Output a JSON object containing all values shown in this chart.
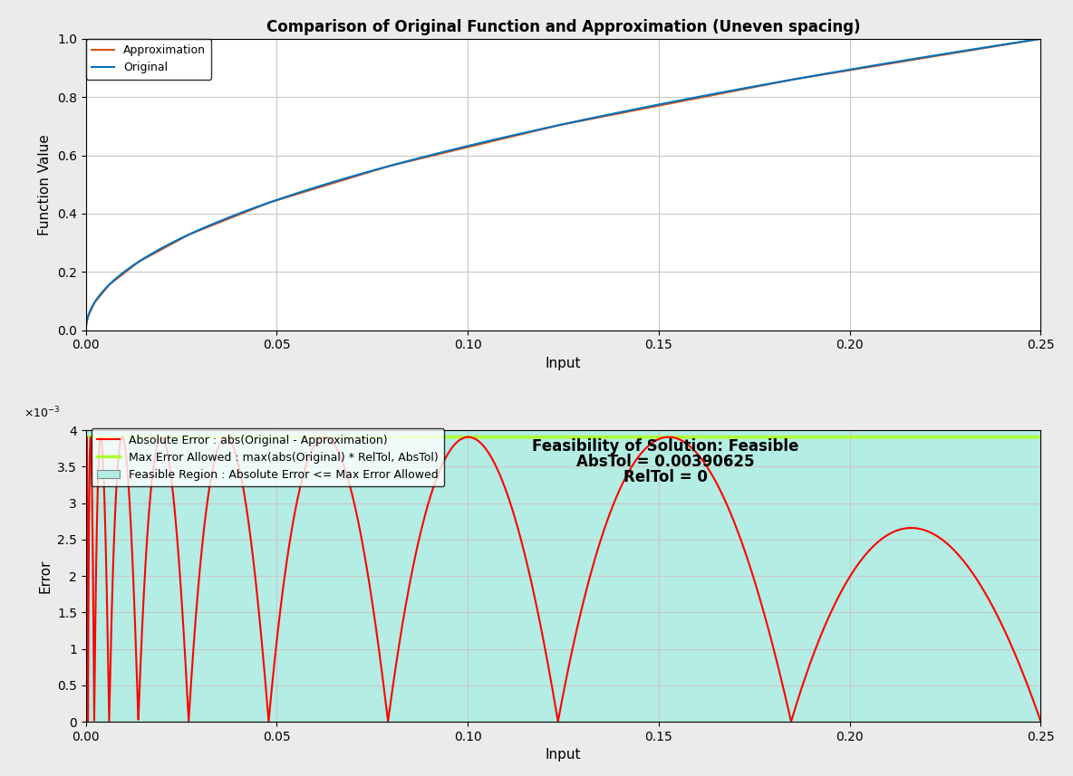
{
  "title1": "Comparison of Original Function and Approximation (Uneven spacing)",
  "title2_line1": "Feasibility of Solution: Feasible",
  "title2_line2": "AbsTol = 0.00390625",
  "title2_line3": "RelTol = 0",
  "xlabel": "Input",
  "ylabel1": "Function Value",
  "ylabel2": "Error",
  "xlim": [
    0,
    0.25
  ],
  "ylim1": [
    0,
    1
  ],
  "ylim2": [
    0,
    0.004
  ],
  "AbsTol": 0.00390625,
  "RelTol": 0,
  "original_color": "#0072BD",
  "approx_color": "#D95319",
  "error_color": "#FF0000",
  "max_error_color": "#ADFF2F",
  "feasible_color": "#B3EDE3",
  "legend1_labels": [
    "Approximation",
    "Original"
  ],
  "legend2_labels": [
    "Absolute Error : abs(Original - Approximation)",
    "Max Error Allowed : max(abs(Original) * RelTol, AbsTol)",
    "Feasible Region : Absolute Error <= Max Error Allowed"
  ],
  "bg_color": "#EBEBEB",
  "plot_bg_color": "#FFFFFF",
  "grid_color": "#C8C8C8",
  "yticks1": [
    0,
    0.2,
    0.4,
    0.6,
    0.8,
    1.0
  ],
  "yticks2": [
    0,
    0.0005,
    0.001,
    0.0015,
    0.002,
    0.0025,
    0.003,
    0.0035,
    0.004
  ],
  "xticks": [
    0,
    0.05,
    0.1,
    0.15,
    0.2,
    0.25
  ]
}
